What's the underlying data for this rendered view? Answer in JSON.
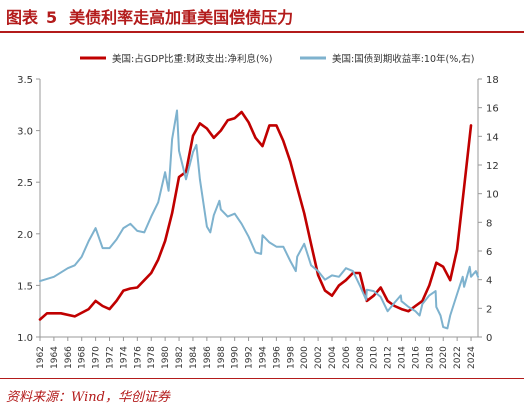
{
  "header": {
    "fig_label": "图表",
    "fig_number": "5",
    "title": "美债利率走高加重美国偿债压力"
  },
  "footer": {
    "source": "资料来源：Wind，华创证券"
  },
  "colors": {
    "accent": "#b31b1b",
    "series_red": "#c00000",
    "series_blue": "#7eb2ce",
    "axis": "#999999"
  },
  "chart_data": {
    "type": "line",
    "legend_position": "top",
    "grid": false,
    "x_tick_labels": [
      "1962",
      "1964",
      "1966",
      "1968",
      "1970",
      "1972",
      "1974",
      "1976",
      "1978",
      "1980",
      "1982",
      "1984",
      "1986",
      "1988",
      "1990",
      "1992",
      "1994",
      "1996",
      "1998",
      "2000",
      "2002",
      "2004",
      "2006",
      "2008",
      "2010",
      "2012",
      "2014",
      "2016",
      "2018",
      "2020",
      "2022",
      "2024"
    ],
    "xlim": [
      1962,
      2025
    ],
    "y_left": {
      "ticks": [
        "1.0",
        "1.5",
        "2.0",
        "2.5",
        "3.0",
        "3.5"
      ],
      "lim": [
        1.0,
        3.5
      ]
    },
    "y_right": {
      "ticks": [
        "0",
        "2",
        "4",
        "6",
        "8",
        "10",
        "12",
        "14",
        "16",
        "18"
      ],
      "lim": [
        0,
        18
      ]
    },
    "series": [
      {
        "name": "美国:占GDP比重:财政支出:净利息(%)",
        "axis": "left",
        "color": "#c00000",
        "x": [
          1962,
          1963,
          1965,
          1967,
          1969,
          1970,
          1971,
          1972,
          1973,
          1974,
          1975,
          1976,
          1977,
          1978,
          1979,
          1980,
          1981,
          1982,
          1983,
          1984,
          1985,
          1986,
          1987,
          1988,
          1989,
          1990,
          1991,
          1992,
          1993,
          1994,
          1995,
          1996,
          1997,
          1998,
          1999,
          2000,
          2001,
          2002,
          2003,
          2004,
          2005,
          2006,
          2007,
          2008,
          2009,
          2010,
          2011,
          2012,
          2013,
          2014,
          2015,
          2016,
          2017,
          2018,
          2019,
          2020,
          2021,
          2022,
          2023,
          2024
        ],
        "y": [
          1.17,
          1.23,
          1.23,
          1.2,
          1.27,
          1.35,
          1.3,
          1.27,
          1.35,
          1.45,
          1.47,
          1.48,
          1.55,
          1.62,
          1.75,
          1.93,
          2.2,
          2.55,
          2.6,
          2.95,
          3.07,
          3.02,
          2.93,
          3.0,
          3.1,
          3.12,
          3.18,
          3.08,
          2.93,
          2.85,
          3.05,
          3.05,
          2.9,
          2.7,
          2.45,
          2.2,
          1.9,
          1.6,
          1.45,
          1.4,
          1.5,
          1.55,
          1.62,
          1.62,
          1.35,
          1.4,
          1.48,
          1.35,
          1.3,
          1.27,
          1.25,
          1.3,
          1.35,
          1.5,
          1.72,
          1.68,
          1.55,
          1.85,
          2.45,
          3.05
        ]
      },
      {
        "name": "美国:国债到期收益率:10年(%,右)",
        "axis": "right",
        "color": "#7eb2ce",
        "x": [
          1962,
          1964,
          1966,
          1967,
          1968,
          1969,
          1970,
          1971,
          1972,
          1973,
          1974,
          1975,
          1976,
          1977,
          1978,
          1979,
          1980,
          1980.5,
          1981,
          1981.7,
          1982,
          1982.5,
          1983,
          1984,
          1984.5,
          1985,
          1986,
          1986.5,
          1987,
          1987.8,
          1988,
          1989,
          1990,
          1991,
          1992,
          1993,
          1993.8,
          1994,
          1995,
          1996,
          1997,
          1998,
          1998.8,
          1999,
          2000,
          2001,
          2002,
          2003,
          2004,
          2005,
          2006,
          2007,
          2008,
          2008.9,
          2009,
          2010,
          2011,
          2012,
          2013,
          2013.9,
          2014,
          2015,
          2016,
          2016.6,
          2017,
          2018,
          2018.9,
          2019,
          2019.6,
          2020,
          2020.6,
          2021,
          2022,
          2022.8,
          2023,
          2023.8,
          2024,
          2024.7,
          2025
        ],
        "y": [
          3.9,
          4.2,
          4.8,
          5.0,
          5.6,
          6.7,
          7.6,
          6.2,
          6.2,
          6.8,
          7.6,
          7.9,
          7.4,
          7.3,
          8.4,
          9.4,
          11.5,
          10.2,
          13.8,
          15.8,
          13.0,
          12.0,
          11.0,
          12.9,
          13.4,
          11.0,
          7.7,
          7.3,
          8.5,
          9.5,
          8.9,
          8.4,
          8.6,
          7.9,
          7.0,
          5.9,
          5.8,
          7.1,
          6.6,
          6.3,
          6.3,
          5.3,
          4.6,
          5.6,
          6.5,
          5.0,
          4.6,
          4.0,
          4.3,
          4.2,
          4.8,
          4.6,
          3.6,
          2.6,
          3.3,
          3.2,
          2.8,
          1.8,
          2.4,
          2.9,
          2.5,
          2.1,
          1.8,
          1.5,
          2.3,
          2.9,
          3.2,
          2.1,
          1.5,
          0.7,
          0.6,
          1.5,
          3.0,
          4.2,
          3.5,
          4.9,
          4.2,
          4.6,
          4.2
        ]
      }
    ]
  }
}
